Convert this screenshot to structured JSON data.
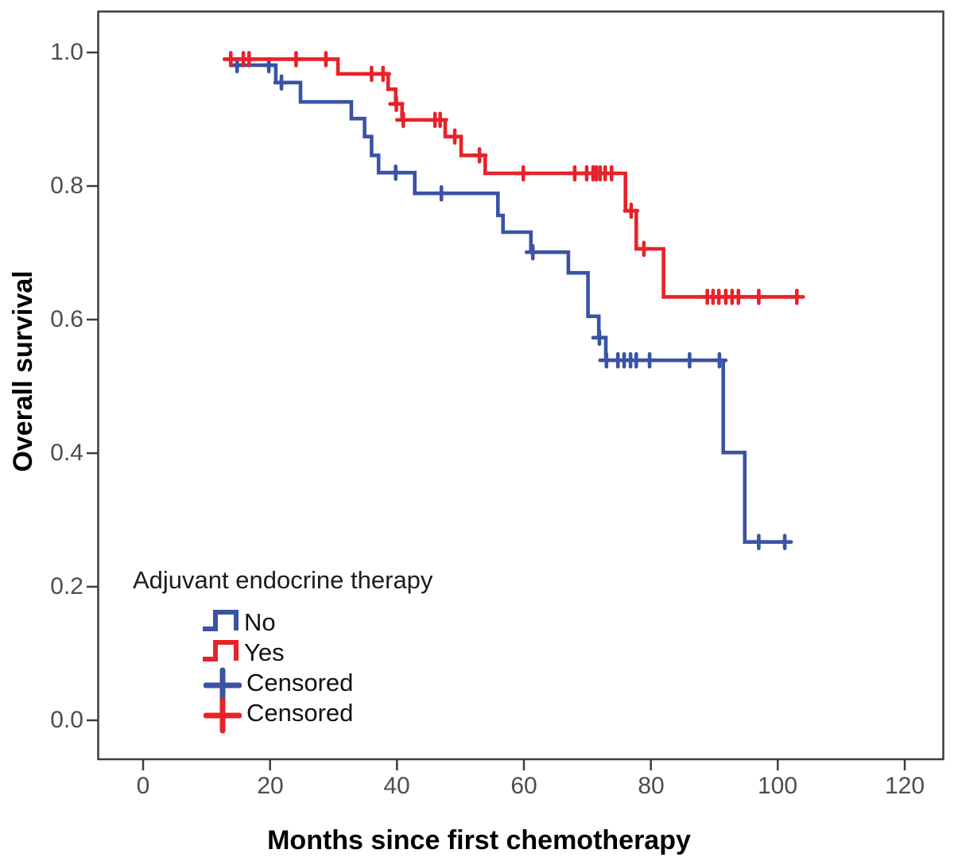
{
  "figure": {
    "x_axis": {
      "label": "Months since first chemotherapy",
      "tick_labels": [
        "0",
        "20",
        "40",
        "60",
        "80",
        "100",
        "120"
      ]
    },
    "y_axis": {
      "label": "Overall survival",
      "tick_labels": [
        "1.0",
        "0.8",
        "0.6",
        "0.4",
        "0.2",
        "0.0"
      ]
    },
    "legend": {
      "title": "Adjuvant endocrine therapy",
      "items": [
        {
          "label": "No",
          "symbol": "step-line-icon",
          "color": "#3a53a4"
        },
        {
          "label": "Yes",
          "symbol": "step-line-icon",
          "color": "#e8222a"
        },
        {
          "label": "Censored",
          "symbol": "plus-icon",
          "color": "#3a53a4"
        },
        {
          "label": "Censored",
          "symbol": "plus-icon",
          "color": "#e8222a"
        }
      ]
    }
  },
  "chart_data": {
    "type": "line",
    "subtype": "kaplan-meier-step",
    "title": "",
    "xlabel": "Months since first chemotherapy",
    "ylabel": "Overall survival",
    "xlim": [
      -7,
      126
    ],
    "ylim": [
      -0.06,
      1.06
    ],
    "x_ticks": [
      0,
      20,
      40,
      60,
      80,
      100,
      120
    ],
    "y_ticks": [
      1.0,
      0.8,
      0.6,
      0.4,
      0.2,
      0.0
    ],
    "grid": false,
    "legend_position": "inside-lower-left",
    "series": [
      {
        "name": "No",
        "color": "#3a53a4",
        "points": [
          [
            13.9,
            0.981
          ],
          [
            20.9,
            0.955
          ],
          [
            24.8,
            0.926
          ],
          [
            32.8,
            0.901
          ],
          [
            34.9,
            0.874
          ],
          [
            36.0,
            0.846
          ],
          [
            37.1,
            0.82
          ],
          [
            42.8,
            0.789
          ],
          [
            55.9,
            0.756
          ],
          [
            56.7,
            0.731
          ],
          [
            61.1,
            0.701
          ],
          [
            67.0,
            0.67
          ],
          [
            70.1,
            0.605
          ],
          [
            71.8,
            0.573
          ],
          [
            72.9,
            0.539
          ],
          [
            91.4,
            0.401
          ],
          [
            94.8,
            0.267
          ],
          [
            101.2,
            0.267
          ]
        ],
        "censored": [
          [
            14.8,
            0.981
          ],
          [
            19.8,
            0.981
          ],
          [
            21.8,
            0.955
          ],
          [
            39.8,
            0.82
          ],
          [
            47.0,
            0.789
          ],
          [
            61.4,
            0.701
          ],
          [
            71.9,
            0.573
          ],
          [
            73.0,
            0.539
          ],
          [
            74.8,
            0.539
          ],
          [
            75.8,
            0.539
          ],
          [
            76.8,
            0.539
          ],
          [
            77.7,
            0.539
          ],
          [
            79.8,
            0.539
          ],
          [
            86.1,
            0.539
          ],
          [
            90.8,
            0.539
          ],
          [
            97.0,
            0.267
          ],
          [
            101.1,
            0.267
          ]
        ]
      },
      {
        "name": "Yes",
        "color": "#e8222a",
        "points": [
          [
            13.2,
            0.99
          ],
          [
            30.7,
            0.968
          ],
          [
            38.6,
            0.945
          ],
          [
            39.8,
            0.923
          ],
          [
            40.8,
            0.899
          ],
          [
            47.6,
            0.874
          ],
          [
            50.1,
            0.846
          ],
          [
            53.9,
            0.819
          ],
          [
            76.0,
            0.763
          ],
          [
            77.7,
            0.706
          ],
          [
            82.0,
            0.634
          ],
          [
            103.3,
            0.634
          ]
        ],
        "censored": [
          [
            13.8,
            0.99
          ],
          [
            15.8,
            0.99
          ],
          [
            16.7,
            0.99
          ],
          [
            24.1,
            0.99
          ],
          [
            28.8,
            0.99
          ],
          [
            36.0,
            0.968
          ],
          [
            37.8,
            0.968
          ],
          [
            39.9,
            0.923
          ],
          [
            41.0,
            0.899
          ],
          [
            46.0,
            0.899
          ],
          [
            46.8,
            0.899
          ],
          [
            49.1,
            0.874
          ],
          [
            53.0,
            0.846
          ],
          [
            59.9,
            0.819
          ],
          [
            68.0,
            0.819
          ],
          [
            69.9,
            0.819
          ],
          [
            70.9,
            0.819
          ],
          [
            71.4,
            0.819
          ],
          [
            72.0,
            0.819
          ],
          [
            72.8,
            0.819
          ],
          [
            73.8,
            0.819
          ],
          [
            76.9,
            0.763
          ],
          [
            78.9,
            0.706
          ],
          [
            88.9,
            0.634
          ],
          [
            89.8,
            0.634
          ],
          [
            90.7,
            0.634
          ],
          [
            91.8,
            0.634
          ],
          [
            92.8,
            0.634
          ],
          [
            93.8,
            0.634
          ],
          [
            97.0,
            0.634
          ],
          [
            103.0,
            0.634
          ]
        ]
      }
    ]
  }
}
